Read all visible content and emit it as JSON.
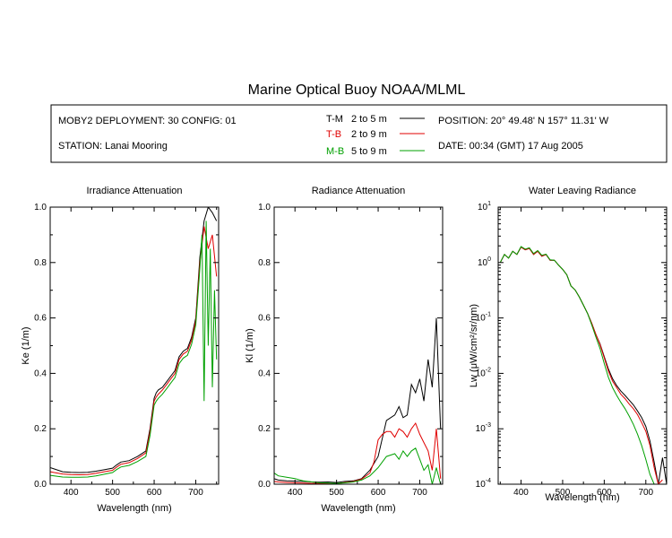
{
  "title": "Marine Optical Buoy NOAA/MLML",
  "info": {
    "deployment": "MOBY2 DEPLOYMENT: 30 CONFIG: 01",
    "station": "STATION: Lanai Mooring",
    "position": "POSITION: 20° 49.48' N   157° 11.31' W",
    "date": "DATE: 00:34 (GMT) 17 Aug 2005",
    "legend": [
      {
        "code": "T-M",
        "range": "2 to 5  m",
        "color": "#000000"
      },
      {
        "code": "T-B",
        "range": "2 to 9  m",
        "color": "#e00000"
      },
      {
        "code": "M-B",
        "range": "5 to 9  m",
        "color": "#00a000"
      }
    ]
  },
  "chart_data": [
    {
      "type": "line",
      "title": "Irradiance Attenuation",
      "xlabel": "Wavelength (nm)",
      "ylabel": "Ke  (1/m)",
      "xlim": [
        350,
        755
      ],
      "ylim": [
        0,
        1
      ],
      "xticks": [
        400,
        500,
        600,
        700
      ],
      "yticks": [
        0.0,
        0.2,
        0.4,
        0.6,
        0.8,
        1.0
      ],
      "ytick_labels": [
        "0.0",
        "0.2",
        "0.4",
        "0.6",
        "0.8",
        "1.0"
      ],
      "series": [
        {
          "code": "T-M",
          "color": "#000000",
          "x": [
            350,
            360,
            380,
            400,
            420,
            440,
            460,
            480,
            500,
            510,
            520,
            540,
            560,
            580,
            590,
            600,
            605,
            610,
            620,
            630,
            640,
            650,
            660,
            670,
            680,
            690,
            700,
            710,
            720,
            730,
            740,
            750
          ],
          "y": [
            0.06,
            0.055,
            0.045,
            0.043,
            0.042,
            0.043,
            0.047,
            0.052,
            0.058,
            0.07,
            0.08,
            0.085,
            0.1,
            0.12,
            0.2,
            0.31,
            0.33,
            0.34,
            0.35,
            0.37,
            0.39,
            0.41,
            0.46,
            0.48,
            0.49,
            0.53,
            0.6,
            0.82,
            0.95,
            1.0,
            0.98,
            0.95
          ]
        },
        {
          "code": "T-B",
          "color": "#e00000",
          "x": [
            350,
            360,
            380,
            400,
            420,
            440,
            460,
            480,
            500,
            510,
            520,
            540,
            560,
            580,
            590,
            600,
            605,
            610,
            620,
            630,
            640,
            650,
            660,
            670,
            680,
            690,
            700,
            710,
            720,
            730,
            740,
            750
          ],
          "y": [
            0.045,
            0.042,
            0.037,
            0.035,
            0.034,
            0.035,
            0.039,
            0.045,
            0.05,
            0.062,
            0.072,
            0.078,
            0.093,
            0.113,
            0.19,
            0.3,
            0.315,
            0.325,
            0.34,
            0.36,
            0.38,
            0.4,
            0.45,
            0.47,
            0.48,
            0.52,
            0.59,
            0.8,
            0.93,
            0.85,
            0.9,
            0.75
          ]
        },
        {
          "code": "M-B",
          "color": "#00a000",
          "x": [
            350,
            360,
            380,
            400,
            420,
            440,
            460,
            480,
            500,
            510,
            520,
            540,
            560,
            580,
            590,
            600,
            605,
            610,
            620,
            630,
            640,
            650,
            660,
            670,
            680,
            690,
            700,
            710,
            715,
            720,
            725,
            730,
            735,
            740,
            745,
            750
          ],
          "y": [
            0.032,
            0.03,
            0.026,
            0.025,
            0.025,
            0.026,
            0.03,
            0.036,
            0.042,
            0.053,
            0.062,
            0.068,
            0.082,
            0.1,
            0.175,
            0.285,
            0.3,
            0.31,
            0.325,
            0.345,
            0.365,
            0.385,
            0.435,
            0.455,
            0.465,
            0.505,
            0.575,
            0.78,
            0.9,
            0.3,
            0.95,
            0.5,
            0.85,
            0.35,
            0.7,
            0.45
          ]
        }
      ]
    },
    {
      "type": "line",
      "title": "Radiance Attenuation",
      "xlabel": "Wavelength (nm)",
      "ylabel": "Kl  (1/m)",
      "xlim": [
        350,
        755
      ],
      "ylim": [
        0,
        1
      ],
      "xticks": [
        400,
        500,
        600,
        700
      ],
      "yticks": [
        0.0,
        0.2,
        0.4,
        0.6,
        0.8,
        1.0
      ],
      "ytick_labels": [
        "0.0",
        "0.2",
        "0.4",
        "0.6",
        "0.8",
        "1.0"
      ],
      "series": [
        {
          "code": "T-M",
          "color": "#000000",
          "x": [
            350,
            360,
            380,
            400,
            420,
            440,
            460,
            480,
            500,
            520,
            540,
            560,
            580,
            600,
            620,
            640,
            650,
            660,
            670,
            680,
            690,
            700,
            710,
            720,
            730,
            740,
            750
          ],
          "y": [
            0.02,
            0.015,
            0.012,
            0.011,
            0.01,
            0.008,
            0.007,
            0.008,
            0.006,
            0.01,
            0.012,
            0.02,
            0.05,
            0.1,
            0.23,
            0.25,
            0.28,
            0.24,
            0.25,
            0.36,
            0.33,
            0.38,
            0.3,
            0.45,
            0.35,
            0.6,
            0.2
          ]
        },
        {
          "code": "T-B",
          "color": "#e00000",
          "x": [
            350,
            360,
            380,
            400,
            420,
            440,
            460,
            480,
            500,
            520,
            540,
            560,
            580,
            590,
            600,
            610,
            620,
            630,
            640,
            650,
            660,
            670,
            680,
            690,
            700,
            710,
            720,
            730,
            740,
            750
          ],
          "y": [
            0.01,
            0.008,
            0.006,
            0.005,
            0.004,
            0.003,
            0.003,
            0.003,
            0.002,
            0.006,
            0.01,
            0.018,
            0.04,
            0.08,
            0.16,
            0.18,
            0.19,
            0.19,
            0.17,
            0.2,
            0.19,
            0.17,
            0.2,
            0.22,
            0.18,
            0.15,
            0.12,
            0.05,
            0.2,
            0.02
          ]
        },
        {
          "code": "M-B",
          "color": "#00a000",
          "x": [
            350,
            360,
            380,
            400,
            420,
            440,
            460,
            480,
            500,
            520,
            540,
            560,
            580,
            600,
            620,
            640,
            650,
            660,
            670,
            680,
            690,
            700,
            710,
            720,
            730,
            740,
            750
          ],
          "y": [
            0.04,
            0.03,
            0.025,
            0.02,
            0.012,
            0.008,
            0.005,
            0.004,
            0.003,
            0.005,
            0.008,
            0.015,
            0.03,
            0.06,
            0.1,
            0.11,
            0.09,
            0.12,
            0.1,
            0.12,
            0.13,
            0.09,
            0.05,
            0.07,
            0.0,
            0.06,
            0.0
          ]
        }
      ]
    },
    {
      "type": "line",
      "title": "Water Leaving Radiance",
      "xlabel": "Wavelength (nm)",
      "ylabel": "Lw  (μW/cm²/sr/nm)",
      "xlim": [
        345,
        750
      ],
      "ylim": [
        0.0001,
        10
      ],
      "yscale": "log",
      "xticks": [
        400,
        500,
        600,
        700
      ],
      "yticks": [
        -4,
        -3,
        -2,
        -1,
        0,
        1
      ],
      "series": [
        {
          "code": "T-M",
          "color": "#000000",
          "x": [
            350,
            360,
            370,
            380,
            390,
            400,
            410,
            420,
            430,
            440,
            450,
            460,
            470,
            480,
            490,
            500,
            510,
            520,
            530,
            540,
            550,
            560,
            570,
            580,
            590,
            600,
            610,
            620,
            630,
            640,
            650,
            660,
            670,
            680,
            690,
            700,
            710,
            720,
            730,
            740,
            750
          ],
          "y": [
            1.0,
            1.4,
            1.2,
            1.6,
            1.4,
            1.9,
            1.7,
            1.8,
            1.4,
            1.6,
            1.3,
            1.4,
            1.1,
            1.1,
            0.9,
            0.75,
            0.6,
            0.38,
            0.32,
            0.24,
            0.17,
            0.12,
            0.08,
            0.05,
            0.034,
            0.02,
            0.012,
            0.008,
            0.006,
            0.0048,
            0.004,
            0.0033,
            0.0027,
            0.0021,
            0.0016,
            0.0011,
            0.0006,
            0.00025,
            0.0001,
            0.0003,
            0.0001
          ]
        },
        {
          "code": "T-B",
          "color": "#e00000",
          "x": [
            350,
            360,
            370,
            380,
            390,
            400,
            410,
            420,
            430,
            440,
            450,
            460,
            470,
            480,
            490,
            500,
            510,
            520,
            530,
            540,
            550,
            560,
            570,
            580,
            590,
            600,
            610,
            620,
            630,
            640,
            650,
            660,
            670,
            680,
            690,
            700,
            710,
            720,
            730,
            740
          ],
          "y": [
            1.0,
            1.4,
            1.2,
            1.6,
            1.4,
            1.9,
            1.7,
            1.8,
            1.4,
            1.6,
            1.3,
            1.4,
            1.1,
            1.1,
            0.9,
            0.75,
            0.6,
            0.38,
            0.32,
            0.24,
            0.17,
            0.12,
            0.08,
            0.05,
            0.033,
            0.019,
            0.011,
            0.0072,
            0.0055,
            0.0042,
            0.0035,
            0.0028,
            0.0023,
            0.0018,
            0.0013,
            0.0009,
            0.0005,
            0.0002,
            0.0001,
            0.00012
          ]
        },
        {
          "code": "M-B",
          "color": "#00a000",
          "x": [
            350,
            360,
            370,
            380,
            390,
            400,
            410,
            420,
            430,
            440,
            450,
            460,
            470,
            480,
            490,
            500,
            510,
            520,
            530,
            540,
            550,
            560,
            570,
            580,
            590,
            600,
            610,
            620,
            630,
            640,
            650,
            660,
            670,
            680,
            690,
            700,
            710,
            720
          ],
          "y": [
            1.0,
            1.4,
            1.2,
            1.6,
            1.4,
            1.95,
            1.75,
            1.85,
            1.45,
            1.65,
            1.35,
            1.42,
            1.12,
            1.1,
            0.9,
            0.75,
            0.6,
            0.38,
            0.32,
            0.24,
            0.17,
            0.12,
            0.075,
            0.045,
            0.028,
            0.015,
            0.0085,
            0.0055,
            0.004,
            0.003,
            0.0023,
            0.0017,
            0.0012,
            0.0008,
            0.0005,
            0.00028,
            0.00015,
            0.0001
          ]
        }
      ]
    }
  ]
}
